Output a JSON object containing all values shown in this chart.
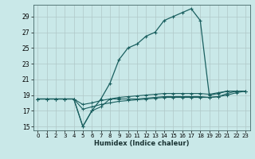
{
  "xlabel": "Humidex (Indice chaleur)",
  "xlim": [
    -0.5,
    23.5
  ],
  "ylim": [
    14.5,
    30.5
  ],
  "xticks": [
    0,
    1,
    2,
    3,
    4,
    5,
    6,
    7,
    8,
    9,
    10,
    11,
    12,
    13,
    14,
    15,
    16,
    17,
    18,
    19,
    20,
    21,
    22,
    23
  ],
  "yticks": [
    15,
    17,
    19,
    21,
    23,
    25,
    27,
    29
  ],
  "bg_color": "#c9e8e8",
  "grid_color": "#b0c8c8",
  "line_color": "#1a5f5f",
  "line1": [
    18.5,
    18.5,
    18.5,
    18.5,
    18.5,
    15.0,
    17.0,
    18.5,
    20.5,
    23.5,
    25.0,
    25.5,
    26.5,
    27.0,
    28.5,
    29.0,
    29.5,
    30.0,
    28.5,
    19.0,
    19.2,
    19.5,
    19.5,
    19.5
  ],
  "line2": [
    18.5,
    18.5,
    18.5,
    18.5,
    18.5,
    15.0,
    17.0,
    17.5,
    18.5,
    18.5,
    18.5,
    18.5,
    18.6,
    18.7,
    18.8,
    18.8,
    18.8,
    18.8,
    18.8,
    18.7,
    18.8,
    19.2,
    19.5,
    19.5
  ],
  "line3": [
    18.5,
    18.5,
    18.5,
    18.5,
    18.5,
    17.2,
    17.5,
    17.8,
    18.0,
    18.2,
    18.3,
    18.4,
    18.5,
    18.6,
    18.7,
    18.7,
    18.7,
    18.7,
    18.7,
    18.7,
    18.8,
    19.0,
    19.3,
    19.5
  ],
  "line4": [
    18.5,
    18.5,
    18.5,
    18.5,
    18.5,
    17.8,
    18.0,
    18.3,
    18.5,
    18.7,
    18.8,
    18.9,
    19.0,
    19.1,
    19.2,
    19.2,
    19.2,
    19.2,
    19.2,
    19.1,
    19.3,
    19.5,
    19.5,
    19.5
  ]
}
